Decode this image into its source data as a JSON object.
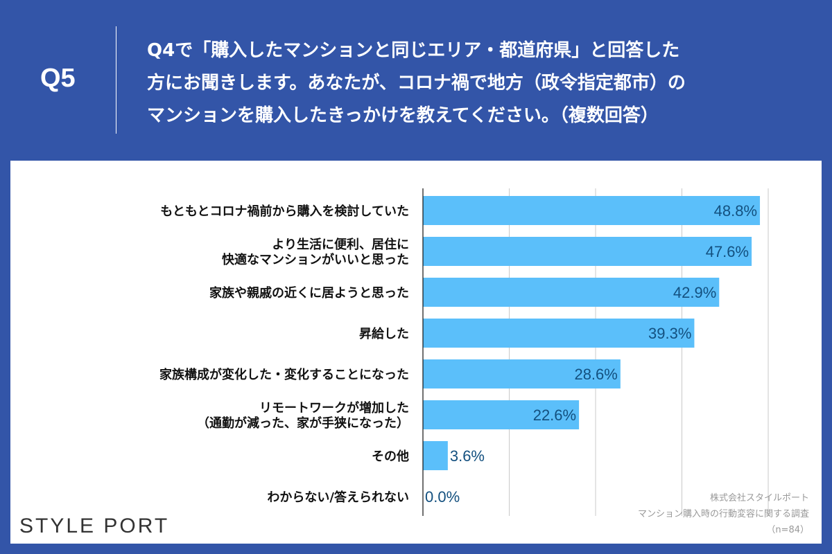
{
  "header": {
    "q_number": "Q5",
    "question": "Q4で「購入したマンションと同じエリア・都道府県」と回答した\n方にお聞きします。あなたが、コロナ禍で地方（政令指定都市）の\nマンションを購入したきっかけを教えてください。（複数回答）"
  },
  "footer": {
    "logo": "STYLE PORT",
    "source_company": "株式会社スタイルポート",
    "source_survey": "マンション購入時の行動変容に関する調査",
    "sample": "（n=84）"
  },
  "colors": {
    "background": "#3355a8",
    "bar": "#5bbffa",
    "value_text": "#13507f"
  },
  "chart_data": {
    "type": "bar",
    "orientation": "horizontal",
    "xlim": [
      0,
      50
    ],
    "grid": true,
    "gridlines": [
      12.5,
      25,
      37.5,
      50
    ],
    "categories": [
      "もともとコロナ禍前から購入を検討していた",
      "より生活に便利、居住に\n快適なマンションがいいと思った",
      "家族や親戚の近くに居ようと思った",
      "昇給した",
      "家族構成が変化した・変化することになった",
      "リモートワークが増加した\n（通勤が減った、家が手狭になった）",
      "その他",
      "わからない/答えられない"
    ],
    "values": [
      48.8,
      47.6,
      42.9,
      39.3,
      28.6,
      22.6,
      3.6,
      0.0
    ],
    "labels": [
      "48.8%",
      "47.6%",
      "42.9%",
      "39.3%",
      "28.6%",
      "22.6%",
      "3.6%",
      "0.0%"
    ]
  }
}
